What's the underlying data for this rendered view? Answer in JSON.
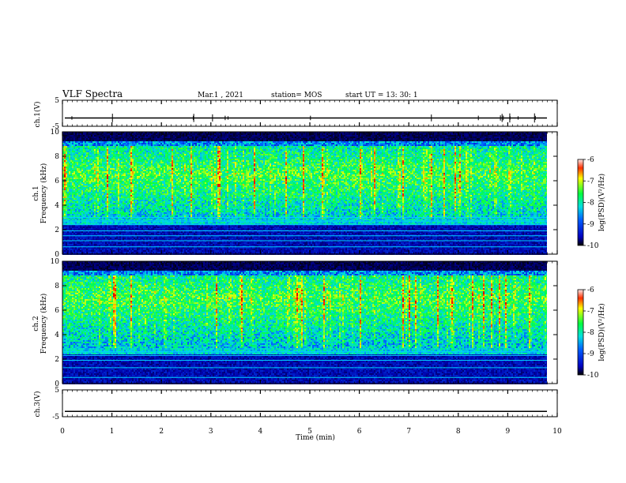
{
  "header": {
    "title": "VLF Spectra",
    "date": "Mar.1 , 2021",
    "station": "station= MOS",
    "start": "start UT = 13: 30: 1"
  },
  "chart_data": {
    "type": "heatmap",
    "xlabel": "Time (min)",
    "xlim": [
      0,
      10
    ],
    "x_ticks": [
      0,
      1,
      2,
      3,
      4,
      5,
      6,
      7,
      8,
      9,
      10
    ],
    "panels": [
      {
        "id": "ch1-waveform",
        "ylabel": "ch.1(V)",
        "ylim": [
          -5,
          5
        ],
        "y_ticks": [
          5,
          -5
        ]
      },
      {
        "id": "ch1-spectrogram",
        "ylabel_line1": "ch.1",
        "ylabel_line2": "Frequency (kHz)",
        "ylim": [
          0,
          10
        ],
        "y_ticks": [
          0,
          2,
          4,
          6,
          8,
          10
        ]
      },
      {
        "id": "ch2-spectrogram",
        "ylabel_line1": "ch.2",
        "ylabel_line2": "Frequency (kHz)",
        "ylim": [
          0,
          10
        ],
        "y_ticks": [
          0,
          2,
          4,
          6,
          8,
          10
        ]
      },
      {
        "id": "ch3-waveform",
        "ylabel": "ch.3(V)",
        "ylim": [
          -5,
          5
        ],
        "y_ticks": [
          5,
          -5
        ]
      }
    ],
    "colorbar": {
      "label": "log(PSD)(V²/Hz)",
      "range": [
        -10,
        -6
      ],
      "ticks": [
        -6,
        -7,
        -8,
        -9,
        -10
      ]
    },
    "colors": {
      "background": "#000080",
      "low": "#0000ff",
      "mid": "#00ff80",
      "high": "#ffff00",
      "peak": "#ff0000"
    }
  }
}
